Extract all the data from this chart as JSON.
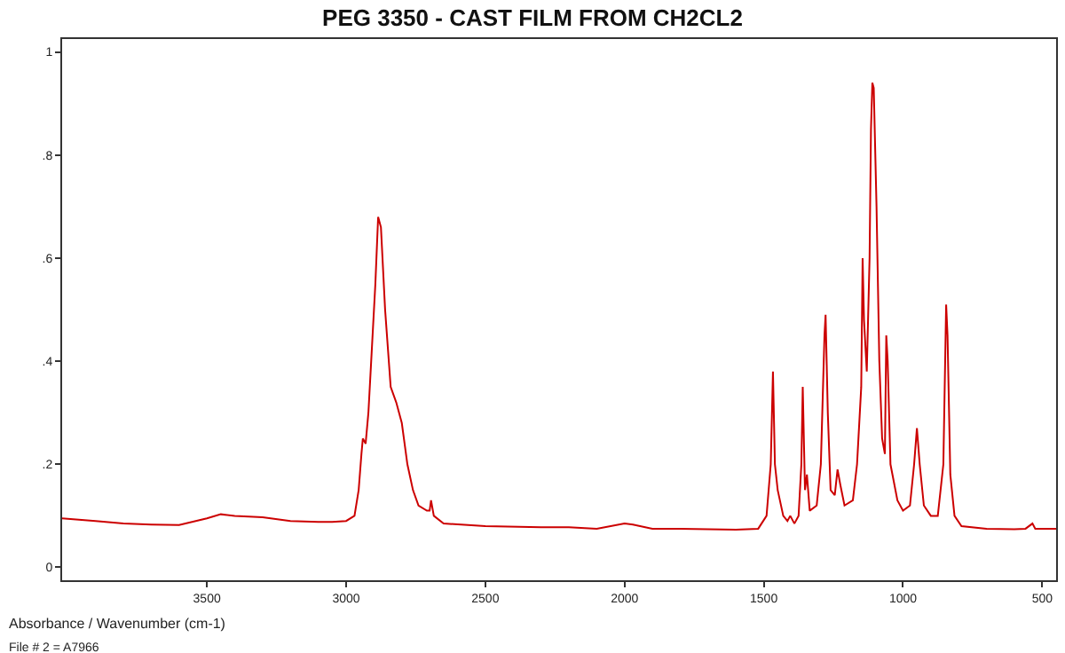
{
  "chart_data": {
    "type": "line",
    "title": "PEG 3350 - CAST FILM FROM CH2CL2",
    "xlabel": "Absorbance / Wavenumber (cm-1)",
    "annotations": [
      "File # 2 = A7966"
    ],
    "x": [
      4020,
      3900,
      3800,
      3700,
      3600,
      3500,
      3450,
      3400,
      3300,
      3200,
      3100,
      3050,
      3000,
      2970,
      2955,
      2945,
      2940,
      2930,
      2920,
      2910,
      2895,
      2885,
      2875,
      2860,
      2840,
      2820,
      2800,
      2780,
      2760,
      2740,
      2710,
      2700,
      2695,
      2685,
      2650,
      2500,
      2300,
      2200,
      2100,
      2000,
      1970,
      1900,
      1800,
      1700,
      1600,
      1520,
      1490,
      1475,
      1467,
      1460,
      1450,
      1430,
      1415,
      1405,
      1390,
      1375,
      1365,
      1360,
      1352,
      1345,
      1335,
      1310,
      1295,
      1282,
      1278,
      1270,
      1260,
      1245,
      1235,
      1225,
      1210,
      1180,
      1165,
      1150,
      1145,
      1140,
      1130,
      1120,
      1115,
      1110,
      1105,
      1095,
      1085,
      1075,
      1065,
      1060,
      1055,
      1045,
      1020,
      1000,
      975,
      960,
      950,
      940,
      925,
      900,
      875,
      855,
      845,
      840,
      830,
      815,
      790,
      700,
      600,
      560,
      535,
      525,
      450
    ],
    "series": [
      {
        "color": "#cc0000",
        "values": [
          0.095,
          0.09,
          0.085,
          0.083,
          0.082,
          0.095,
          0.103,
          0.1,
          0.097,
          0.09,
          0.088,
          0.088,
          0.09,
          0.1,
          0.15,
          0.22,
          0.25,
          0.24,
          0.3,
          0.4,
          0.55,
          0.68,
          0.66,
          0.5,
          0.35,
          0.32,
          0.28,
          0.2,
          0.15,
          0.12,
          0.11,
          0.11,
          0.13,
          0.1,
          0.085,
          0.08,
          0.078,
          0.078,
          0.075,
          0.085,
          0.083,
          0.075,
          0.075,
          0.074,
          0.073,
          0.075,
          0.1,
          0.2,
          0.38,
          0.2,
          0.15,
          0.1,
          0.09,
          0.1,
          0.085,
          0.1,
          0.2,
          0.35,
          0.15,
          0.18,
          0.11,
          0.12,
          0.2,
          0.45,
          0.49,
          0.3,
          0.15,
          0.14,
          0.19,
          0.16,
          0.12,
          0.13,
          0.2,
          0.35,
          0.6,
          0.48,
          0.38,
          0.6,
          0.85,
          0.94,
          0.93,
          0.7,
          0.4,
          0.25,
          0.22,
          0.45,
          0.4,
          0.2,
          0.13,
          0.11,
          0.12,
          0.2,
          0.27,
          0.2,
          0.12,
          0.1,
          0.1,
          0.2,
          0.51,
          0.45,
          0.18,
          0.1,
          0.08,
          0.075,
          0.074,
          0.075,
          0.085,
          0.075,
          0.075
        ]
      }
    ],
    "xlim": [
      4020,
      450
    ],
    "ylim": [
      -0.025,
      1.025
    ],
    "xticks": [
      3500,
      3000,
      2500,
      2000,
      1500,
      1000,
      500
    ],
    "yticks": [
      {
        "value": 0,
        "label": "0"
      },
      {
        "value": 0.2,
        "label": ".2"
      },
      {
        "value": 0.4,
        "label": ".4"
      },
      {
        "value": 0.6,
        "label": ".6"
      },
      {
        "value": 0.8,
        "label": ".8"
      },
      {
        "value": 1,
        "label": "1"
      }
    ],
    "marker": "none",
    "line_style": "solid"
  }
}
